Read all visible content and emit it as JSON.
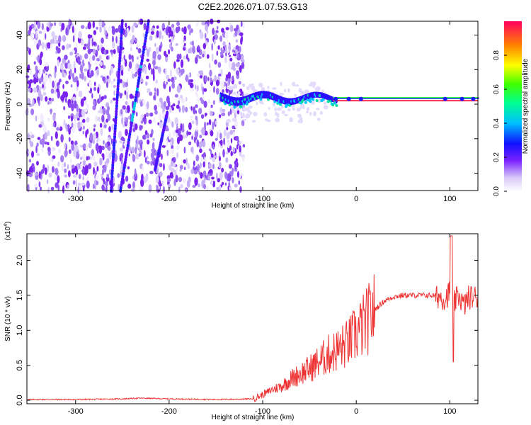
{
  "title": "C2E2.2026.071.07.53.G13",
  "chart_data": [
    {
      "type": "heatmap",
      "name": "spectrogram",
      "xlabel": "Height of straight line (km)",
      "ylabel": "Frequency (Hz)",
      "xlim": [
        -352,
        130
      ],
      "ylim": [
        -50,
        48
      ],
      "xticks": [
        -300,
        -200,
        -100,
        0,
        100
      ],
      "yticks": [
        -40,
        -20,
        0,
        20,
        40
      ],
      "colorbar": {
        "label": "Normalized spectral amplitude",
        "range": [
          0,
          1
        ],
        "ticks": [
          0.0,
          0.2,
          0.4,
          0.6,
          0.8
        ]
      },
      "features": {
        "noise_region_x": [
          -352,
          -120
        ],
        "signal_trace_x": [
          -145,
          130
        ],
        "signal_frequency_hz": 2,
        "streaks": [
          {
            "x_start": -262,
            "x_end": -250,
            "y_start": -50,
            "y_end": 48
          },
          {
            "x_start": -252,
            "x_end": -222,
            "y_start": -50,
            "y_end": 48
          },
          {
            "x_start": -215,
            "x_end": -202,
            "y_start": -38,
            "y_end": -5
          }
        ]
      }
    },
    {
      "type": "line",
      "name": "snr",
      "xlabel": "Height of straight line (km)",
      "ylabel": "SNR (10 * v/v)",
      "y_multiplier": "(x10",
      "y_multiplier_exp": "4",
      "y_multiplier_close": ")",
      "xlim": [
        -352,
        130
      ],
      "ylim": [
        -0.05,
        2.38
      ],
      "xticks": [
        -300,
        -200,
        -100,
        0,
        100
      ],
      "yticks": [
        "0.0",
        "0.5",
        "1.0",
        "1.5",
        "2.0"
      ],
      "line_color": "#ee3333",
      "series": [
        {
          "name": "SNR",
          "x": [
            -352,
            -300,
            -250,
            -230,
            -200,
            -150,
            -110,
            -100,
            -90,
            -80,
            -70,
            -60,
            -50,
            -40,
            -30,
            -20,
            -10,
            0,
            10,
            20,
            30,
            40,
            50,
            60,
            70,
            80,
            90,
            95,
            100,
            102,
            105,
            110,
            115,
            120,
            130
          ],
          "y": [
            0.01,
            0.01,
            0.02,
            0.03,
            0.02,
            0.01,
            0.02,
            0.08,
            0.15,
            0.2,
            0.3,
            0.38,
            0.45,
            0.55,
            0.65,
            0.72,
            0.8,
            0.95,
            1.1,
            1.3,
            1.42,
            1.48,
            1.5,
            1.5,
            1.5,
            1.5,
            1.48,
            1.45,
            1.55,
            1.7,
            1.4,
            1.5,
            1.35,
            1.47,
            1.48
          ]
        }
      ]
    }
  ]
}
